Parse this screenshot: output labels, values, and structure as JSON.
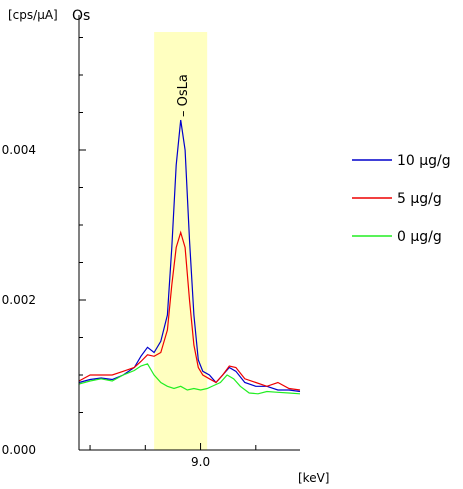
{
  "chart_data": {
    "type": "line",
    "title": "Os",
    "ylabel": "[cps/µA]",
    "xlabel": "[keV]",
    "xlim": [
      8.45,
      9.45
    ],
    "ylim": [
      0.0,
      0.0058
    ],
    "y_ticks": [
      {
        "value": 0.0,
        "label": "0.000"
      },
      {
        "value": 0.002,
        "label": "0.002"
      },
      {
        "value": 0.004,
        "label": "0.004"
      }
    ],
    "x_ticks": [
      {
        "value": 9.0,
        "label": "9.0"
      }
    ],
    "x_minor_ticks": [
      8.5,
      8.75,
      9.25
    ],
    "highlight_band": {
      "x_start": 8.79,
      "x_end": 9.03,
      "color": "#ffffc0"
    },
    "annotation": {
      "label": "– OsLa",
      "x": 8.92,
      "y": 0.0054
    },
    "legend_position": "right",
    "grid": false,
    "series": [
      {
        "name": "10 µg/g",
        "color": "#0000cc",
        "points": [
          [
            8.45,
            0.0009
          ],
          [
            8.5,
            0.00094
          ],
          [
            8.55,
            0.00096
          ],
          [
            8.6,
            0.00094
          ],
          [
            8.65,
            0.001
          ],
          [
            8.7,
            0.0011
          ],
          [
            8.73,
            0.00125
          ],
          [
            8.76,
            0.00137
          ],
          [
            8.79,
            0.0013
          ],
          [
            8.82,
            0.00145
          ],
          [
            8.85,
            0.0018
          ],
          [
            8.87,
            0.0027
          ],
          [
            8.89,
            0.0038
          ],
          [
            8.91,
            0.0044
          ],
          [
            8.93,
            0.004
          ],
          [
            8.95,
            0.0028
          ],
          [
            8.97,
            0.0018
          ],
          [
            8.99,
            0.0012
          ],
          [
            9.01,
            0.00105
          ],
          [
            9.04,
            0.001
          ],
          [
            9.07,
            0.0009
          ],
          [
            9.1,
            0.001
          ],
          [
            9.13,
            0.0011
          ],
          [
            9.16,
            0.00105
          ],
          [
            9.2,
            0.0009
          ],
          [
            9.25,
            0.00085
          ],
          [
            9.3,
            0.00085
          ],
          [
            9.35,
            0.0008
          ],
          [
            9.4,
            0.0008
          ],
          [
            9.45,
            0.00078
          ]
        ]
      },
      {
        "name": "5 µg/g",
        "color": "#ee0000",
        "points": [
          [
            8.45,
            0.00092
          ],
          [
            8.5,
            0.001
          ],
          [
            8.55,
            0.001
          ],
          [
            8.6,
            0.001
          ],
          [
            8.65,
            0.00105
          ],
          [
            8.7,
            0.0011
          ],
          [
            8.73,
            0.00118
          ],
          [
            8.76,
            0.00127
          ],
          [
            8.79,
            0.00125
          ],
          [
            8.82,
            0.0013
          ],
          [
            8.85,
            0.0016
          ],
          [
            8.87,
            0.0022
          ],
          [
            8.89,
            0.0027
          ],
          [
            8.91,
            0.0029
          ],
          [
            8.93,
            0.0027
          ],
          [
            8.95,
            0.002
          ],
          [
            8.97,
            0.0014
          ],
          [
            8.99,
            0.0011
          ],
          [
            9.01,
            0.001
          ],
          [
            9.04,
            0.00095
          ],
          [
            9.07,
            0.0009
          ],
          [
            9.1,
            0.001
          ],
          [
            9.13,
            0.00112
          ],
          [
            9.16,
            0.0011
          ],
          [
            9.2,
            0.00095
          ],
          [
            9.25,
            0.0009
          ],
          [
            9.3,
            0.00085
          ],
          [
            9.35,
            0.0009
          ],
          [
            9.4,
            0.00082
          ],
          [
            9.45,
            0.0008
          ]
        ]
      },
      {
        "name": "0 µg/g",
        "color": "#22ee22",
        "points": [
          [
            8.45,
            0.00088
          ],
          [
            8.5,
            0.00092
          ],
          [
            8.55,
            0.00095
          ],
          [
            8.6,
            0.00092
          ],
          [
            8.65,
            0.001
          ],
          [
            8.7,
            0.00106
          ],
          [
            8.73,
            0.00112
          ],
          [
            8.76,
            0.00115
          ],
          [
            8.79,
            0.001
          ],
          [
            8.82,
            0.0009
          ],
          [
            8.85,
            0.00085
          ],
          [
            8.88,
            0.00082
          ],
          [
            8.91,
            0.00085
          ],
          [
            8.94,
            0.0008
          ],
          [
            8.97,
            0.00082
          ],
          [
            9.0,
            0.0008
          ],
          [
            9.03,
            0.00082
          ],
          [
            9.06,
            0.00086
          ],
          [
            9.09,
            0.0009
          ],
          [
            9.12,
            0.001
          ],
          [
            9.15,
            0.00095
          ],
          [
            9.18,
            0.00085
          ],
          [
            9.22,
            0.00076
          ],
          [
            9.26,
            0.00075
          ],
          [
            9.3,
            0.00078
          ],
          [
            9.35,
            0.00077
          ],
          [
            9.4,
            0.00076
          ],
          [
            9.45,
            0.00075
          ]
        ]
      }
    ]
  }
}
